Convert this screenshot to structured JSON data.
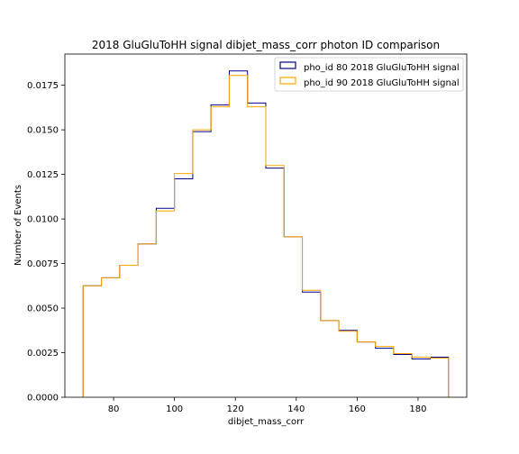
{
  "chart_data": {
    "type": "histogram",
    "title": "2018 GluGluToHH signal dibjet_mass_corr photon ID comparison",
    "xlabel": "dibjet_mass_corr",
    "ylabel": "Number of Events",
    "xlim": [
      64,
      196
    ],
    "ylim": [
      0,
      0.01925
    ],
    "xticks": [
      80,
      100,
      120,
      140,
      160,
      180
    ],
    "xtick_labels": [
      "80",
      "100",
      "120",
      "140",
      "160",
      "180"
    ],
    "yticks": [
      0,
      0.0025,
      0.005,
      0.0075,
      0.01,
      0.0125,
      0.015,
      0.0175
    ],
    "ytick_labels": [
      "0.0000",
      "0.0025",
      "0.0050",
      "0.0075",
      "0.0100",
      "0.0125",
      "0.0150",
      "0.0175"
    ],
    "bin_edges": [
      70,
      76,
      82,
      88,
      94,
      100,
      106,
      112,
      118,
      124,
      130,
      136,
      142,
      148,
      154,
      160,
      166,
      172,
      178,
      184,
      190
    ],
    "legend_position": "top-right",
    "grid": false,
    "series": [
      {
        "name": "pho_id 80 2018 GluGluToHH signal",
        "color": "#00008b",
        "values": [
          0.00625,
          0.0067,
          0.0074,
          0.0086,
          0.0106,
          0.01225,
          0.0149,
          0.0164,
          0.0183,
          0.0165,
          0.01285,
          0.009,
          0.0059,
          0.0043,
          0.00375,
          0.0031,
          0.00275,
          0.0024,
          0.00215,
          0.00225
        ]
      },
      {
        "name": "pho_id 90 2018 GluGluToHH signal",
        "color": "#ffa500",
        "values": [
          0.00625,
          0.0067,
          0.0074,
          0.0086,
          0.01045,
          0.01255,
          0.015,
          0.0163,
          0.01805,
          0.0163,
          0.013,
          0.009,
          0.006,
          0.0043,
          0.0037,
          0.0031,
          0.00285,
          0.00245,
          0.00225,
          0.0022
        ]
      }
    ]
  }
}
